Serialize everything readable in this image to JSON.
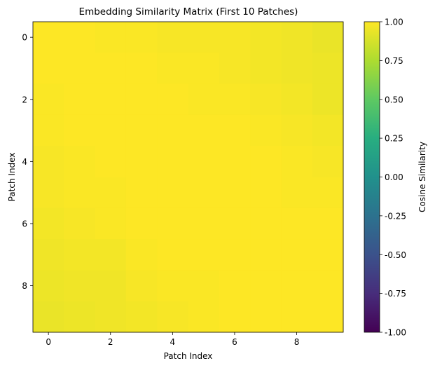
{
  "chart_data": {
    "type": "heatmap",
    "title": "Embedding Similarity Matrix (First 10 Patches)",
    "xlabel": "Patch Index",
    "ylabel": "Patch Index",
    "x_ticks": [
      0,
      2,
      4,
      6,
      8
    ],
    "y_ticks": [
      0,
      2,
      4,
      6,
      8
    ],
    "xlim": [
      -0.5,
      9.5
    ],
    "ylim": [
      9.5,
      -0.5
    ],
    "colorbar": {
      "label": "Cosine Similarity",
      "colormap": "viridis",
      "range": [
        -1.0,
        1.0
      ],
      "ticks": [
        "-1.00",
        "-0.75",
        "-0.50",
        "-0.25",
        "0.00",
        "0.25",
        "0.50",
        "0.75",
        "1.00"
      ]
    },
    "matrix": [
      [
        1.0,
        1.0,
        0.99,
        0.99,
        0.98,
        0.98,
        0.98,
        0.97,
        0.96,
        0.94
      ],
      [
        1.0,
        1.0,
        1.0,
        1.0,
        0.99,
        0.99,
        0.98,
        0.97,
        0.96,
        0.95
      ],
      [
        0.99,
        1.0,
        1.0,
        1.0,
        1.0,
        0.99,
        0.99,
        0.98,
        0.97,
        0.95
      ],
      [
        0.99,
        1.0,
        1.0,
        1.0,
        1.0,
        1.0,
        1.0,
        0.99,
        0.98,
        0.97
      ],
      [
        0.98,
        0.99,
        1.0,
        1.0,
        1.0,
        1.0,
        1.0,
        1.0,
        0.99,
        0.98
      ],
      [
        0.98,
        0.99,
        0.99,
        1.0,
        1.0,
        1.0,
        1.0,
        1.0,
        0.99,
        0.99
      ],
      [
        0.97,
        0.98,
        0.99,
        1.0,
        1.0,
        1.0,
        1.0,
        1.0,
        1.0,
        1.0
      ],
      [
        0.96,
        0.97,
        0.97,
        0.99,
        1.0,
        1.0,
        1.0,
        1.0,
        1.0,
        1.0
      ],
      [
        0.95,
        0.96,
        0.96,
        0.98,
        0.99,
        0.99,
        1.0,
        1.0,
        1.0,
        1.0
      ],
      [
        0.94,
        0.95,
        0.96,
        0.97,
        0.98,
        0.99,
        1.0,
        1.0,
        1.0,
        1.0
      ]
    ]
  }
}
